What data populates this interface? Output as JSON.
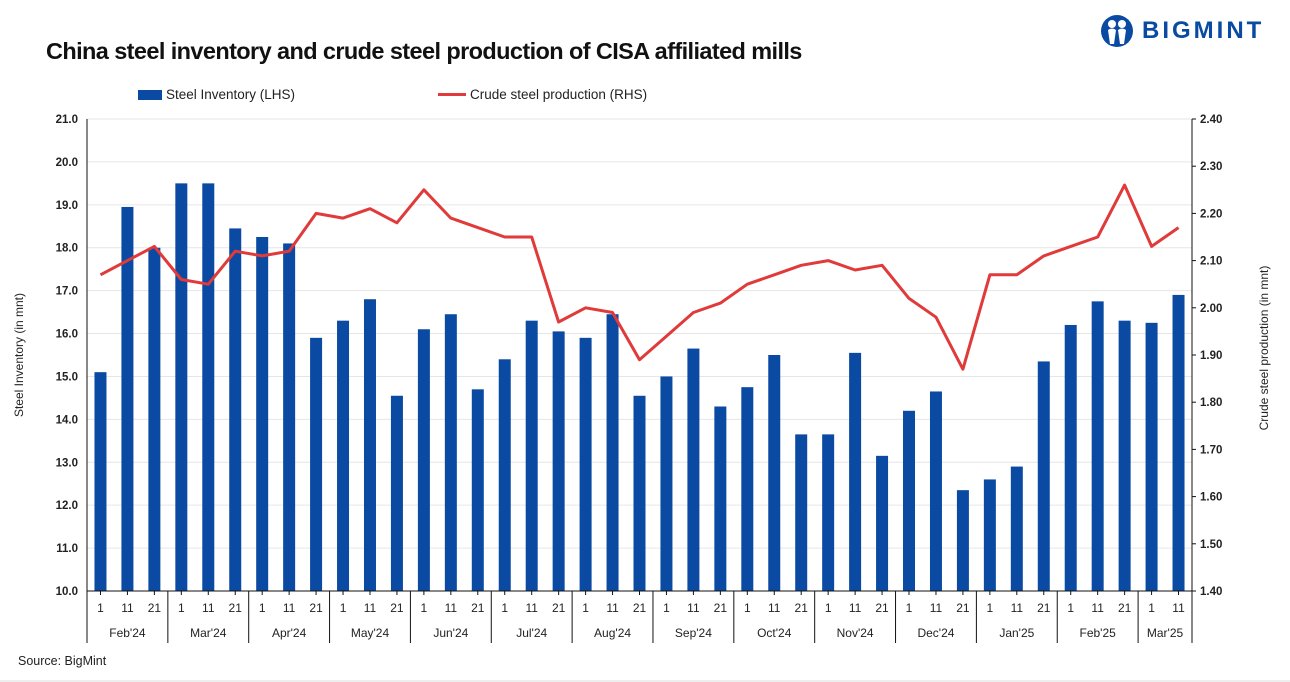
{
  "header": {
    "title": "China steel inventory and crude steel production of CISA affiliated mills",
    "brand": "BIGMINT",
    "logo_icon": "bigmint-people-logo-icon"
  },
  "legend": {
    "bar_label": "Steel Inventory (LHS)",
    "line_label": "Crude steel production (RHS)"
  },
  "footer": {
    "source": "Source: BigMint"
  },
  "colors": {
    "bar": "#0b4aa2",
    "line": "#e03a3a",
    "grid": "#e6e6e6",
    "axis": "#111111"
  },
  "chart_data": {
    "type": "bar+line",
    "title": "China steel inventory and crude steel production of CISA affiliated mills",
    "xlabel": "",
    "ylabel_left": "Steel Inventory (in mnt)",
    "ylabel_right": "Crude steel production (in mnt)",
    "ylim_left": [
      10.0,
      21.0
    ],
    "ylim_right": [
      1.4,
      2.4
    ],
    "yticks_left": [
      "10.0",
      "11.0",
      "12.0",
      "13.0",
      "14.0",
      "15.0",
      "16.0",
      "17.0",
      "18.0",
      "19.0",
      "20.0",
      "21.0"
    ],
    "yticks_right": [
      "1.40",
      "1.50",
      "1.60",
      "1.70",
      "1.80",
      "1.90",
      "2.00",
      "2.10",
      "2.20",
      "2.30",
      "2.40"
    ],
    "grid": true,
    "legend_position": "top",
    "months": [
      {
        "label": "Feb'24",
        "days": [
          "1",
          "11",
          "21"
        ]
      },
      {
        "label": "Mar'24",
        "days": [
          "1",
          "11",
          "21"
        ]
      },
      {
        "label": "Apr'24",
        "days": [
          "1",
          "11",
          "21"
        ]
      },
      {
        "label": "May'24",
        "days": [
          "1",
          "11",
          "21"
        ]
      },
      {
        "label": "Jun'24",
        "days": [
          "1",
          "11",
          "21"
        ]
      },
      {
        "label": "Jul'24",
        "days": [
          "1",
          "11",
          "21"
        ]
      },
      {
        "label": "Aug'24",
        "days": [
          "1",
          "11",
          "21"
        ]
      },
      {
        "label": "Sep'24",
        "days": [
          "1",
          "11",
          "21"
        ]
      },
      {
        "label": "Oct'24",
        "days": [
          "1",
          "11",
          "21"
        ]
      },
      {
        "label": "Nov'24",
        "days": [
          "1",
          "11",
          "21"
        ]
      },
      {
        "label": "Dec'24",
        "days": [
          "1",
          "11",
          "21"
        ]
      },
      {
        "label": "Jan'25",
        "days": [
          "1",
          "11",
          "21"
        ]
      },
      {
        "label": "Feb'25",
        "days": [
          "1",
          "11",
          "21"
        ]
      },
      {
        "label": "Mar'25",
        "days": [
          "1",
          "11"
        ]
      }
    ],
    "series": [
      {
        "name": "Steel Inventory (LHS)",
        "type": "bar",
        "axis": "left",
        "values": [
          15.1,
          18.95,
          18.0,
          19.5,
          19.5,
          18.45,
          18.25,
          18.1,
          15.9,
          16.3,
          16.8,
          14.55,
          16.1,
          16.45,
          14.7,
          15.4,
          16.3,
          16.05,
          15.9,
          16.45,
          14.55,
          15.0,
          15.65,
          14.3,
          14.75,
          15.5,
          13.65,
          13.65,
          15.55,
          13.15,
          14.2,
          14.65,
          12.35,
          12.6,
          12.9,
          15.35,
          16.2,
          16.75,
          16.3,
          16.25,
          16.9
        ]
      },
      {
        "name": "Crude steel production (RHS)",
        "type": "line",
        "axis": "right",
        "values": [
          2.07,
          2.1,
          2.13,
          2.06,
          2.05,
          2.12,
          2.11,
          2.12,
          2.2,
          2.19,
          2.21,
          2.18,
          2.25,
          2.19,
          2.17,
          2.15,
          2.15,
          1.97,
          2.0,
          1.99,
          1.89,
          1.94,
          1.99,
          2.01,
          2.05,
          2.07,
          2.09,
          2.1,
          2.08,
          2.09,
          2.02,
          1.98,
          1.87,
          2.07,
          2.07,
          2.11,
          2.13,
          2.15,
          2.26,
          2.13,
          2.17
        ]
      }
    ]
  }
}
